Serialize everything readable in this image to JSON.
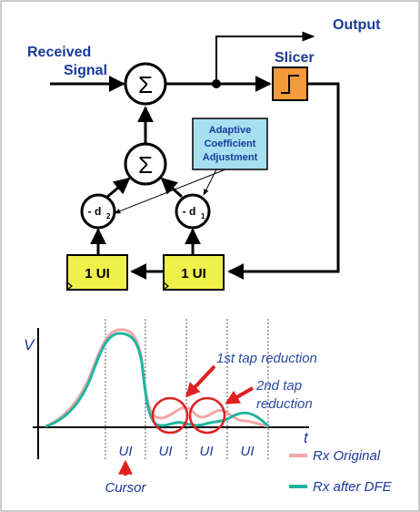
{
  "diagram": {
    "input_label_line1": "Received",
    "input_label_line2": "Signal",
    "output_label": "Output",
    "slicer_label": "Slicer",
    "sum_symbol": "Σ",
    "adaptive_line1": "Adaptive",
    "adaptive_line2": "Coefficient",
    "adaptive_line3": "Adjustment",
    "tap2_label": "- d",
    "tap2_sub": "2",
    "tap1_label": "- d",
    "tap1_sub": "1",
    "delay_label": "1 UI"
  },
  "plot": {
    "y_label": "V",
    "x_label": "t",
    "ui_labels": [
      "UI",
      "UI",
      "UI",
      "UI"
    ],
    "cursor_label": "Cursor",
    "annotation_1": "1st tap reduction",
    "annotation_2_line1": "2nd tap",
    "annotation_2_line2": "reduction",
    "legend": [
      {
        "label": "Rx Original",
        "color": "#f2a7a7"
      },
      {
        "label": "Rx after DFE",
        "color": "#1fb5a0"
      }
    ],
    "colors": {
      "original": "#f2a7a7",
      "dfe": "#1fb5a0",
      "highlight": "#e02020",
      "diagram_blue": "#1a3a9a",
      "delay_fill": "#f0f04a",
      "slicer_fill": "#f59a3a",
      "adaptive_fill": "#a8dff0"
    }
  }
}
